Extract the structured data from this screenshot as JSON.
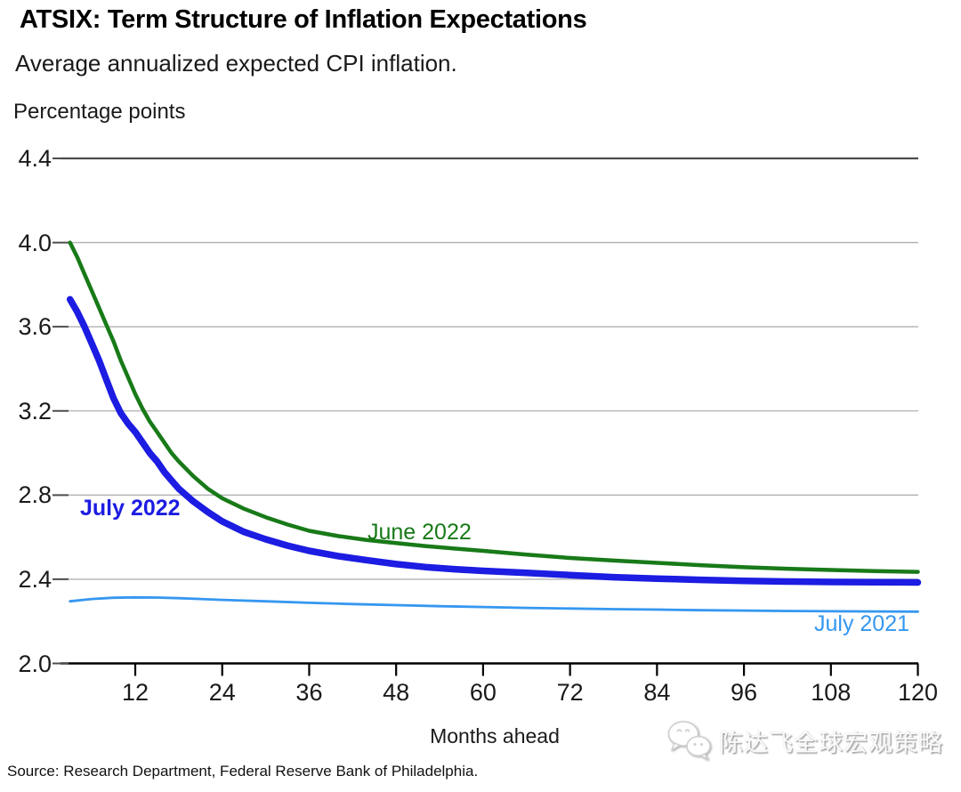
{
  "header": {
    "title": "ATSIX: Term Structure of Inflation Expectations",
    "subtitle": "Average annualized expected CPI inflation.",
    "unit_label": "Percentage points"
  },
  "footer": {
    "source": "Source: Research Department, Federal Reserve Bank of Philadelphia.",
    "watermark": "陈达飞全球宏观策略",
    "watermark_icon": "wechat-icon"
  },
  "chart_data": {
    "type": "line",
    "title": "ATSIX: Term Structure of Inflation Expectations",
    "subtitle": "Average annualized expected CPI inflation.",
    "xlabel": "Months ahead",
    "ylabel": "Percentage points",
    "xlim": [
      1.5,
      120
    ],
    "ylim": [
      2.0,
      4.4
    ],
    "x_ticks": [
      12,
      24,
      36,
      48,
      60,
      72,
      84,
      96,
      108,
      120
    ],
    "y_ticks": [
      2.0,
      2.4,
      2.8,
      3.2,
      3.6,
      4.0,
      4.4
    ],
    "grid": "horizontal",
    "legend_position": "inline-labels",
    "colors": {
      "axis": "#000000",
      "grid": "#b0b0b0",
      "top_grid": "#4d4d4d",
      "tick": "#4d4d4d"
    },
    "series": [
      {
        "name": "July 2022",
        "color": "#1c1ce2",
        "width": 7.5,
        "points": [
          [
            3,
            3.73
          ],
          [
            4,
            3.67
          ],
          [
            5,
            3.6
          ],
          [
            6,
            3.52
          ],
          [
            7,
            3.44
          ],
          [
            8,
            3.35
          ],
          [
            9,
            3.26
          ],
          [
            10,
            3.19
          ],
          [
            11,
            3.14
          ],
          [
            12,
            3.1
          ],
          [
            13,
            3.05
          ],
          [
            14,
            3.0
          ],
          [
            15,
            2.96
          ],
          [
            16,
            2.91
          ],
          [
            17,
            2.87
          ],
          [
            18,
            2.83
          ],
          [
            20,
            2.77
          ],
          [
            22,
            2.72
          ],
          [
            24,
            2.675
          ],
          [
            27,
            2.625
          ],
          [
            30,
            2.59
          ],
          [
            33,
            2.56
          ],
          [
            36,
            2.535
          ],
          [
            40,
            2.51
          ],
          [
            44,
            2.49
          ],
          [
            48,
            2.472
          ],
          [
            52,
            2.458
          ],
          [
            56,
            2.448
          ],
          [
            60,
            2.44
          ],
          [
            66,
            2.43
          ],
          [
            72,
            2.42
          ],
          [
            78,
            2.41
          ],
          [
            84,
            2.403
          ],
          [
            90,
            2.397
          ],
          [
            96,
            2.392
          ],
          [
            102,
            2.389
          ],
          [
            108,
            2.387
          ],
          [
            114,
            2.386
          ],
          [
            120,
            2.385
          ]
        ]
      },
      {
        "name": "June 2022",
        "color": "#187a18",
        "width": 4.5,
        "points": [
          [
            3,
            4.0
          ],
          [
            4,
            3.93
          ],
          [
            5,
            3.85
          ],
          [
            6,
            3.77
          ],
          [
            7,
            3.69
          ],
          [
            8,
            3.61
          ],
          [
            9,
            3.53
          ],
          [
            10,
            3.44
          ],
          [
            11,
            3.36
          ],
          [
            12,
            3.28
          ],
          [
            13,
            3.21
          ],
          [
            14,
            3.15
          ],
          [
            15,
            3.1
          ],
          [
            16,
            3.05
          ],
          [
            17,
            3.0
          ],
          [
            18,
            2.96
          ],
          [
            20,
            2.89
          ],
          [
            22,
            2.83
          ],
          [
            24,
            2.785
          ],
          [
            27,
            2.735
          ],
          [
            30,
            2.695
          ],
          [
            33,
            2.66
          ],
          [
            36,
            2.63
          ],
          [
            40,
            2.605
          ],
          [
            44,
            2.586
          ],
          [
            48,
            2.572
          ],
          [
            52,
            2.558
          ],
          [
            56,
            2.546
          ],
          [
            60,
            2.535
          ],
          [
            66,
            2.517
          ],
          [
            72,
            2.501
          ],
          [
            78,
            2.489
          ],
          [
            84,
            2.478
          ],
          [
            90,
            2.467
          ],
          [
            96,
            2.457
          ],
          [
            102,
            2.45
          ],
          [
            108,
            2.444
          ],
          [
            114,
            2.439
          ],
          [
            120,
            2.435
          ]
        ]
      },
      {
        "name": "July 2021",
        "color": "#3597f0",
        "width": 2.8,
        "points": [
          [
            3,
            2.295
          ],
          [
            6,
            2.306
          ],
          [
            9,
            2.312
          ],
          [
            12,
            2.314
          ],
          [
            15,
            2.313
          ],
          [
            18,
            2.31
          ],
          [
            21,
            2.306
          ],
          [
            24,
            2.302
          ],
          [
            30,
            2.295
          ],
          [
            36,
            2.288
          ],
          [
            42,
            2.282
          ],
          [
            48,
            2.277
          ],
          [
            54,
            2.272
          ],
          [
            60,
            2.268
          ],
          [
            66,
            2.264
          ],
          [
            72,
            2.261
          ],
          [
            78,
            2.258
          ],
          [
            84,
            2.256
          ],
          [
            90,
            2.253
          ],
          [
            96,
            2.251
          ],
          [
            102,
            2.249
          ],
          [
            108,
            2.248
          ],
          [
            114,
            2.247
          ],
          [
            120,
            2.246
          ]
        ]
      }
    ]
  }
}
